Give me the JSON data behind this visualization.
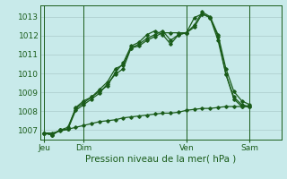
{
  "xlabel": "Pression niveau de la mer( hPa )",
  "background_color": "#c8eaea",
  "grid_color": "#b0d0d0",
  "line_color": "#1a5c1a",
  "ylim": [
    1006.5,
    1013.6
  ],
  "yticks": [
    1007,
    1008,
    1009,
    1010,
    1011,
    1012,
    1013
  ],
  "day_labels": [
    "Jeu",
    "Dim",
    "Ven",
    "Sam"
  ],
  "day_positions": [
    0,
    5,
    18,
    26
  ],
  "xlim": [
    -0.5,
    30
  ],
  "series": [
    [
      1006.85,
      1006.75,
      1007.0,
      1007.05,
      1008.2,
      1008.55,
      1008.75,
      1009.05,
      1009.35,
      1010.05,
      1010.55,
      1011.45,
      1011.65,
      1012.05,
      1012.25,
      1012.05,
      1011.55,
      1012.05,
      1012.15,
      1012.55,
      1013.25,
      1013.0,
      1012.05,
      1010.25,
      1009.05,
      1008.55,
      1008.35
    ],
    [
      1006.85,
      1006.75,
      1007.0,
      1007.15,
      1008.15,
      1008.45,
      1008.75,
      1009.15,
      1009.55,
      1010.25,
      1010.45,
      1011.35,
      1011.55,
      1011.85,
      1012.05,
      1012.25,
      1011.75,
      1012.05,
      1012.15,
      1012.45,
      1013.15,
      1012.95,
      1011.75,
      1009.95,
      1008.75,
      1008.35,
      1008.25
    ],
    [
      1006.85,
      1006.75,
      1007.0,
      1007.05,
      1008.05,
      1008.35,
      1008.65,
      1008.95,
      1009.45,
      1009.95,
      1010.25,
      1011.35,
      1011.45,
      1011.75,
      1011.95,
      1012.15,
      1012.15,
      1012.15,
      1012.15,
      1012.95,
      1013.15,
      1012.95,
      1011.95,
      1009.95,
      1008.65,
      1008.25,
      1008.25
    ],
    [
      1006.85,
      1006.85,
      1006.95,
      1007.05,
      1007.15,
      1007.25,
      1007.35,
      1007.45,
      1007.5,
      1007.55,
      1007.65,
      1007.7,
      1007.75,
      1007.8,
      1007.85,
      1007.9,
      1007.9,
      1007.95,
      1008.05,
      1008.1,
      1008.15,
      1008.15,
      1008.2,
      1008.25,
      1008.25,
      1008.25,
      1008.25
    ]
  ]
}
